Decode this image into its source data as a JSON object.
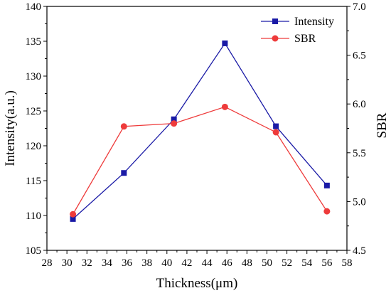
{
  "chart_data": {
    "type": "line",
    "xlabel": "Thickness(μm)",
    "ylabel_left": "Intensity(a.u.)",
    "ylabel_right": "SBR",
    "xlim": [
      28,
      58
    ],
    "ylim_left": [
      105,
      140
    ],
    "ylim_right": [
      4.5,
      7.0
    ],
    "x_ticks": [
      28,
      30,
      32,
      34,
      36,
      38,
      40,
      42,
      44,
      46,
      48,
      50,
      52,
      54,
      56,
      58
    ],
    "y_left_ticks": [
      105,
      110,
      115,
      120,
      125,
      130,
      135,
      140
    ],
    "y_right_ticks": [
      "4.5",
      "5.0",
      "5.5",
      "6.0",
      "6.5",
      "7.0"
    ],
    "grid": false,
    "legend_position": "top-right",
    "series": [
      {
        "name": "Intensity",
        "axis": "left",
        "color": "#1a1aa6",
        "marker": "square",
        "x": [
          30.6,
          35.7,
          40.7,
          45.8,
          50.9,
          56.0
        ],
        "y": [
          109.5,
          116.1,
          123.8,
          134.7,
          122.8,
          114.3
        ]
      },
      {
        "name": "SBR",
        "axis": "right",
        "color": "#ee3b3b",
        "marker": "circle",
        "x": [
          30.6,
          35.7,
          40.7,
          45.8,
          50.9,
          56.0
        ],
        "y": [
          4.87,
          5.77,
          5.8,
          5.97,
          5.71,
          4.9
        ]
      }
    ]
  }
}
